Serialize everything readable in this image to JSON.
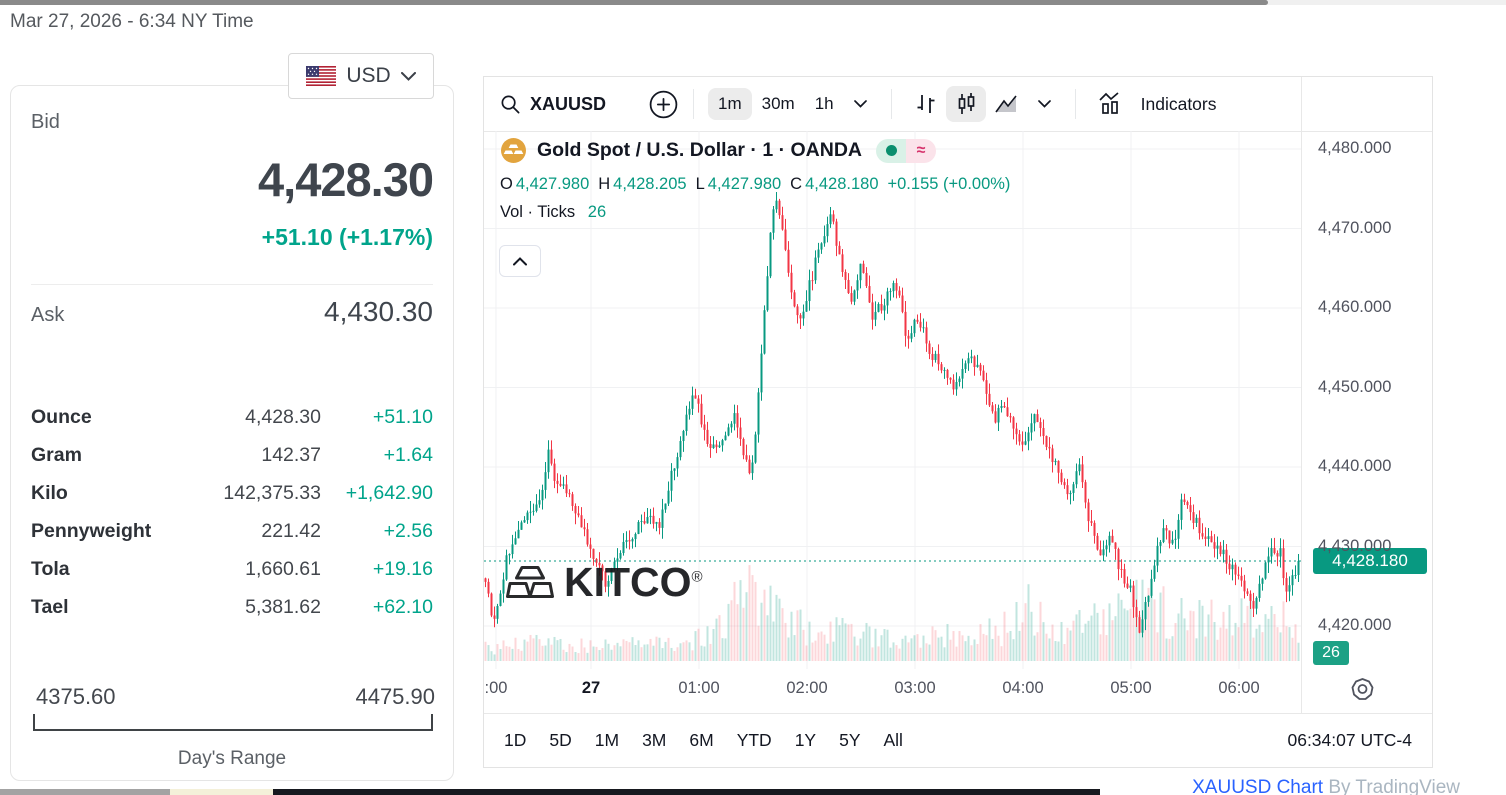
{
  "page": {
    "datetime": "Mar 27, 2026 - 6:34 NY Time",
    "attribution": {
      "link": "XAUUSD Chart",
      "suffix": " By TradingView"
    }
  },
  "currency_selector": {
    "currency": "USD",
    "flag": "us-flag"
  },
  "quote": {
    "bid_label": "Bid",
    "bid": "4,428.30",
    "change": "+51.10 (+1.17%)",
    "ask_label": "Ask",
    "ask": "4,430.30",
    "units": [
      {
        "label": "Ounce",
        "value": "4,428.30",
        "change": "+51.10"
      },
      {
        "label": "Gram",
        "value": "142.37",
        "change": "+1.64"
      },
      {
        "label": "Kilo",
        "value": "142,375.33",
        "change": "+1,642.90"
      },
      {
        "label": "Pennyweight",
        "value": "221.42",
        "change": "+2.56"
      },
      {
        "label": "Tola",
        "value": "1,660.61",
        "change": "+19.16"
      },
      {
        "label": "Tael",
        "value": "5,381.62",
        "change": "+62.10"
      }
    ],
    "range": {
      "low": "4375.60",
      "high": "4475.90",
      "label": "Day's Range"
    }
  },
  "toolbar": {
    "symbol_search": "XAUUSD",
    "intervals": [
      "1m",
      "30m",
      "1h"
    ],
    "selected_interval": "1m",
    "indicators_label": "Indicators"
  },
  "chart_header": {
    "title": "Gold Spot / U.S. Dollar · 1 · OANDA",
    "ohlc": {
      "o_label": "O",
      "o": "4,427.980",
      "h_label": "H",
      "h": "4,428.205",
      "l_label": "L",
      "l": "4,427.980",
      "c_label": "C",
      "c": "4,428.180",
      "change": "+0.155 (+0.00%)"
    },
    "vol_label": "Vol · Ticks",
    "vol_value": "26"
  },
  "watermark": "KITCO",
  "footer": {
    "ranges": [
      "1D",
      "5D",
      "1M",
      "3M",
      "6M",
      "YTD",
      "1Y",
      "5Y",
      "All"
    ],
    "clock": "06:34:07 UTC-4"
  },
  "colors": {
    "up": "#089981",
    "down": "#f23645",
    "accent": "#00a48b",
    "link": "#2962ff",
    "badge": "#089981"
  },
  "chart_data": {
    "type": "candlestick",
    "title": "Gold Spot / U.S. Dollar",
    "symbol": "XAUUSD",
    "exchange": "OANDA",
    "interval": "1",
    "last_price": 4428.18,
    "last_bar": {
      "open": 4427.98,
      "high": 4428.205,
      "low": 4427.98,
      "close": 4428.18,
      "change": 0.155,
      "change_pct": 0.0
    },
    "tick_volume": 26,
    "price_label": "4,428.180",
    "volume_label": "26",
    "ylim": [
      4414,
      4482
    ],
    "x_span_hours": 7.56,
    "grid": true,
    "y_ticks": [
      {
        "label": "4,480.000",
        "price": 4480
      },
      {
        "label": "4,470.000",
        "price": 4470
      },
      {
        "label": "4,460.000",
        "price": 4460
      },
      {
        "label": "4,450.000",
        "price": 4450
      },
      {
        "label": "4,440.000",
        "price": 4440
      },
      {
        "label": "4,430.000",
        "price": 4430
      },
      {
        "label": "4,420.000",
        "price": 4420
      }
    ],
    "x_ticks": [
      {
        "label": ":00",
        "h": 0.12,
        "bold": false
      },
      {
        "label": "27",
        "h": 1.0,
        "bold": true
      },
      {
        "label": "01:00",
        "h": 2.0,
        "bold": false
      },
      {
        "label": "02:00",
        "h": 3.0,
        "bold": false
      },
      {
        "label": "03:00",
        "h": 4.0,
        "bold": false
      },
      {
        "label": "04:00",
        "h": 5.0,
        "bold": false
      },
      {
        "label": "05:00",
        "h": 6.0,
        "bold": false
      },
      {
        "label": "06:00",
        "h": 7.0,
        "bold": false
      }
    ],
    "price_path": [
      [
        0.0,
        4426
      ],
      [
        0.08,
        4421
      ],
      [
        0.14,
        4423
      ],
      [
        0.22,
        4429
      ],
      [
        0.32,
        4432
      ],
      [
        0.42,
        4434
      ],
      [
        0.55,
        4437
      ],
      [
        0.6,
        4443
      ],
      [
        0.66,
        4437
      ],
      [
        0.74,
        4438
      ],
      [
        0.86,
        4434
      ],
      [
        0.95,
        4431
      ],
      [
        1.0,
        4429
      ],
      [
        1.08,
        4427
      ],
      [
        1.14,
        4425
      ],
      [
        1.25,
        4429
      ],
      [
        1.4,
        4432
      ],
      [
        1.55,
        4434
      ],
      [
        1.62,
        4432
      ],
      [
        1.74,
        4439
      ],
      [
        1.85,
        4445
      ],
      [
        1.93,
        4449
      ],
      [
        2.0,
        4447
      ],
      [
        2.06,
        4443
      ],
      [
        2.16,
        4442
      ],
      [
        2.25,
        4445
      ],
      [
        2.32,
        4447
      ],
      [
        2.4,
        4442
      ],
      [
        2.47,
        4438
      ],
      [
        2.53,
        4447
      ],
      [
        2.6,
        4460
      ],
      [
        2.66,
        4470
      ],
      [
        2.7,
        4475
      ],
      [
        2.76,
        4470
      ],
      [
        2.84,
        4463
      ],
      [
        2.92,
        4458
      ],
      [
        3.0,
        4462
      ],
      [
        3.08,
        4466
      ],
      [
        3.16,
        4469
      ],
      [
        3.22,
        4472
      ],
      [
        3.3,
        4466
      ],
      [
        3.4,
        4461
      ],
      [
        3.5,
        4466
      ],
      [
        3.6,
        4459
      ],
      [
        3.72,
        4461
      ],
      [
        3.82,
        4463
      ],
      [
        3.92,
        4456
      ],
      [
        4.02,
        4459
      ],
      [
        4.12,
        4455
      ],
      [
        4.25,
        4452
      ],
      [
        4.35,
        4450
      ],
      [
        4.47,
        4454
      ],
      [
        4.6,
        4452
      ],
      [
        4.72,
        4446
      ],
      [
        4.83,
        4448
      ],
      [
        4.92,
        4444
      ],
      [
        5.0,
        4442
      ],
      [
        5.1,
        4446
      ],
      [
        5.2,
        4443
      ],
      [
        5.3,
        4440
      ],
      [
        5.42,
        4437
      ],
      [
        5.52,
        4440
      ],
      [
        5.6,
        4434
      ],
      [
        5.7,
        4429
      ],
      [
        5.8,
        4431
      ],
      [
        5.9,
        4427
      ],
      [
        6.0,
        4424
      ],
      [
        6.08,
        4419
      ],
      [
        6.14,
        4423
      ],
      [
        6.22,
        4429
      ],
      [
        6.3,
        4432
      ],
      [
        6.4,
        4430
      ],
      [
        6.47,
        4436
      ],
      [
        6.55,
        4434
      ],
      [
        6.65,
        4432
      ],
      [
        6.75,
        4430
      ],
      [
        6.85,
        4429
      ],
      [
        6.95,
        4427
      ],
      [
        7.05,
        4424
      ],
      [
        7.12,
        4422
      ],
      [
        7.2,
        4426
      ],
      [
        7.3,
        4430
      ],
      [
        7.38,
        4429
      ],
      [
        7.44,
        4424
      ],
      [
        7.5,
        4426
      ],
      [
        7.56,
        4428.18
      ]
    ],
    "volume_profile": [
      [
        0,
        0.18
      ],
      [
        0.5,
        0.25
      ],
      [
        1.0,
        0.2
      ],
      [
        1.5,
        0.22
      ],
      [
        2.0,
        0.3
      ],
      [
        2.2,
        0.5
      ],
      [
        2.35,
        0.8
      ],
      [
        2.5,
        1.0
      ],
      [
        2.6,
        0.8
      ],
      [
        2.8,
        0.5
      ],
      [
        3.0,
        0.45
      ],
      [
        3.3,
        0.4
      ],
      [
        3.6,
        0.33
      ],
      [
        4.0,
        0.38
      ],
      [
        4.4,
        0.33
      ],
      [
        4.8,
        0.42
      ],
      [
        5.05,
        0.85
      ],
      [
        5.2,
        0.4
      ],
      [
        5.5,
        0.5
      ],
      [
        5.8,
        0.55
      ],
      [
        6.1,
        0.8
      ],
      [
        6.4,
        0.6
      ],
      [
        6.7,
        0.55
      ],
      [
        7.0,
        0.62
      ],
      [
        7.3,
        0.68
      ],
      [
        7.56,
        0.5
      ]
    ]
  }
}
